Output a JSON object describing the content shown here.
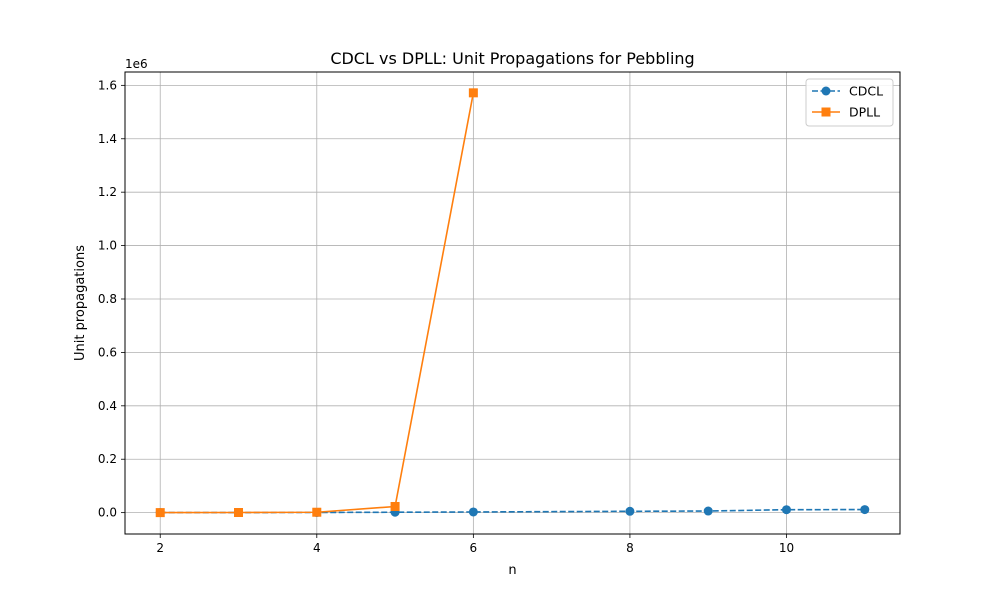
{
  "chart_data": {
    "type": "line",
    "title": "CDCL vs DPLL: Unit Propagations for Pebbling",
    "xlabel": "n",
    "ylabel": "Unit propagations",
    "y_offset_label": "1e6",
    "xlim": [
      1.55,
      11.45
    ],
    "ylim": [
      -80000,
      1650000
    ],
    "x_ticks": [
      2,
      4,
      6,
      8,
      10
    ],
    "y_ticks": [
      0,
      200000,
      400000,
      600000,
      800000,
      1000000,
      1200000,
      1400000,
      1600000
    ],
    "y_tick_labels": [
      "0.0",
      "0.2",
      "0.4",
      "0.6",
      "0.8",
      "1.0",
      "1.2",
      "1.4",
      "1.6"
    ],
    "grid": true,
    "legend_position": "top-right",
    "series": [
      {
        "name": "CDCL",
        "color": "#1f77b4",
        "marker": "circle",
        "linestyle": "dashed",
        "x": [
          2,
          3,
          4,
          5,
          6,
          8,
          9,
          10,
          11
        ],
        "y": [
          100,
          300,
          700,
          1500,
          2500,
          5000,
          6000,
          11000,
          11500
        ]
      },
      {
        "name": "DPLL",
        "color": "#ff7f0e",
        "marker": "square",
        "linestyle": "solid",
        "x": [
          2,
          3,
          4,
          5,
          6
        ],
        "y": [
          100,
          500,
          1500,
          23000,
          1572000
        ]
      }
    ]
  }
}
